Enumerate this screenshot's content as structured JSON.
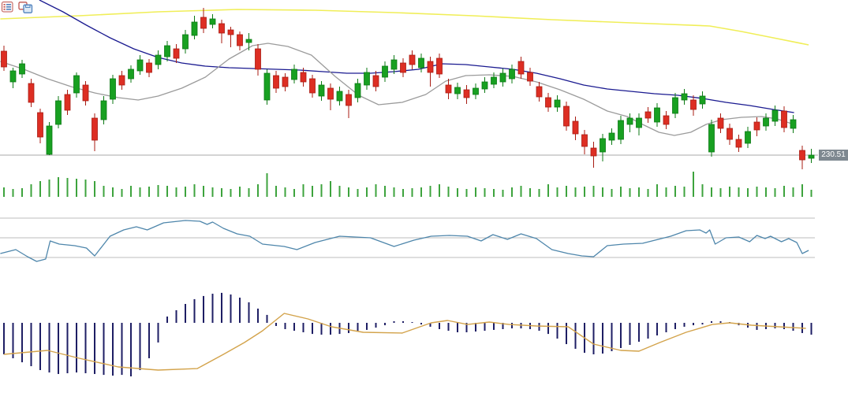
{
  "window": {
    "background": "#ffffff"
  },
  "toolbar": {
    "icons": [
      {
        "name": "table-icon"
      },
      {
        "name": "copy-icon"
      }
    ]
  },
  "price_panel": {
    "last_price_label": "230.51"
  },
  "colors": {
    "up": "#18a021",
    "up_stroke": "#0c7a14",
    "down": "#dd2e23",
    "down_stroke": "#a81c13",
    "ma_fast": "#9b9b9b",
    "ma_slow": "#1a1a90",
    "ma_long": "#f0ee58",
    "volume": "#3da33d",
    "oscillator": "#4e86ab",
    "macd_histogram": "#1e1e64",
    "macd_signal": "#d3a34b",
    "grid": "#bdbdbd",
    "price_line": "#a9a9a9",
    "price_tag_bg": "#7e8890",
    "price_tag_text": "#ffffff"
  },
  "chart_data": [
    {
      "panel": "price",
      "type": "candlestick",
      "last_close": 230.51,
      "hline": 230.51,
      "candles": {
        "open": [
          251.63,
          245.39,
          246.99,
          245.07,
          239.15,
          230.67,
          236.75,
          242.83,
          243.15,
          244.75,
          238.03,
          237.71,
          241.87,
          246.67,
          246.03,
          247.63,
          249.23,
          248.91,
          250.51,
          252.11,
          252.11,
          254.83,
          258.51,
          257.07,
          257.23,
          255.95,
          254.99,
          253.39,
          252.11,
          241.71,
          246.67,
          246.35,
          245.87,
          247.31,
          246.03,
          242.51,
          244.11,
          241.55,
          242.83,
          242.19,
          244.75,
          246.67,
          246.35,
          247.95,
          249.23,
          250.83,
          248.27,
          249.55,
          250.19,
          244.75,
          242.99,
          243.79,
          242.83,
          243.95,
          244.91,
          245.39,
          246.03,
          249.55,
          247.31,
          244.43,
          242.19,
          240.27,
          240.43,
          237.39,
          234.67,
          231.95,
          231.15,
          233.55,
          233.71,
          236.75,
          236.11,
          239.31,
          237.23,
          238.51,
          238.99,
          241.71,
          241.71,
          240.91,
          231.15,
          238.03,
          235.95,
          233.71,
          232.91,
          237.23,
          236.43,
          237.39,
          239.47,
          235.95,
          231.47,
          229.87
        ],
        "high": [
          252.75,
          248.27,
          249.87,
          246.03,
          239.95,
          237.23,
          242.51,
          243.79,
          247.31,
          245.55,
          238.99,
          242.51,
          246.83,
          247.63,
          248.75,
          250.83,
          250.03,
          251.79,
          253.71,
          253.07,
          255.95,
          258.83,
          260.43,
          259.15,
          258.03,
          256.59,
          255.63,
          255.31,
          253.07,
          247.95,
          247.63,
          247.15,
          248.91,
          248.27,
          246.83,
          245.55,
          245.07,
          244.43,
          243.79,
          246.03,
          248.27,
          247.63,
          249.55,
          250.83,
          250.19,
          251.79,
          251.15,
          250.51,
          251.15,
          246.03,
          245.23,
          244.75,
          245.07,
          246.35,
          247.31,
          248.11,
          248.91,
          250.51,
          248.27,
          245.39,
          243.15,
          242.67,
          241.39,
          238.35,
          235.63,
          233.23,
          234.83,
          235.95,
          238.51,
          238.99,
          238.99,
          240.27,
          241.07,
          239.47,
          243.15,
          243.95,
          242.67,
          243.47,
          237.71,
          238.99,
          236.91,
          234.67,
          236.27,
          238.19,
          238.99,
          240.59,
          240.43,
          238.67,
          232.43,
          231.79
        ],
        "low": [
          247.63,
          244.11,
          246.19,
          240.27,
          232.91,
          230.51,
          235.95,
          238.67,
          242.19,
          240.59,
          231.31,
          236.75,
          240.91,
          243.79,
          245.23,
          246.83,
          246.35,
          247.95,
          249.55,
          249.23,
          251.15,
          254.03,
          255.31,
          256.27,
          253.23,
          252.43,
          251.79,
          251.79,
          246.67,
          240.75,
          243.15,
          243.47,
          245.07,
          244.43,
          242.19,
          241.55,
          239.63,
          240.59,
          238.03,
          241.23,
          243.79,
          243.47,
          245.39,
          246.99,
          246.35,
          247.95,
          247.31,
          244.43,
          246.19,
          241.87,
          241.87,
          240.91,
          241.87,
          243.15,
          244.11,
          244.43,
          245.07,
          246.03,
          244.59,
          241.39,
          239.31,
          239.31,
          235.47,
          233.55,
          230.67,
          227.95,
          229.23,
          232.59,
          232.75,
          235.15,
          234.51,
          237.07,
          236.27,
          235.79,
          238.03,
          240.75,
          238.51,
          239.95,
          230.19,
          234.99,
          232.59,
          231.15,
          231.95,
          234.35,
          235.47,
          236.43,
          235.15,
          234.99,
          227.63,
          228.91
        ],
        "close": [
          248.43,
          247.63,
          249.07,
          241.23,
          234.19,
          236.43,
          241.55,
          239.63,
          246.67,
          241.55,
          233.55,
          241.55,
          246.03,
          244.75,
          247.95,
          249.87,
          247.31,
          250.83,
          252.75,
          250.19,
          254.99,
          257.55,
          256.27,
          258.19,
          255.31,
          254.99,
          252.75,
          254.03,
          247.95,
          247.15,
          244.11,
          244.43,
          247.95,
          245.39,
          243.15,
          244.75,
          241.87,
          243.47,
          240.59,
          245.07,
          247.31,
          244.43,
          248.59,
          249.87,
          247.31,
          248.91,
          250.19,
          247.31,
          246.99,
          243.15,
          244.27,
          242.19,
          244.11,
          245.39,
          246.35,
          247.15,
          247.95,
          246.99,
          245.55,
          242.35,
          240.27,
          241.71,
          236.43,
          234.83,
          232.27,
          230.35,
          233.87,
          234.99,
          237.55,
          238.03,
          238.03,
          238.03,
          240.11,
          236.75,
          242.19,
          242.99,
          239.79,
          242.51,
          236.75,
          235.95,
          233.71,
          232.11,
          235.31,
          235.63,
          238.03,
          239.63,
          236.11,
          237.71,
          229.55,
          230.51
        ]
      },
      "overlays": [
        {
          "name": "ma-long",
          "color_key": "ma_long",
          "idx": [
            -0.4,
            8.3,
            17,
            25.7,
            34.3,
            43,
            51.7,
            60.4,
            69.1,
            77.8,
            81.3,
            84.8,
            88.7
          ],
          "price": [
            258.19,
            258.83,
            259.63,
            260.11,
            259.95,
            259.47,
            258.83,
            258.03,
            257.39,
            256.75,
            255.63,
            254.35,
            252.91
          ]
        },
        {
          "name": "ma-slow",
          "color_key": "ma_slow",
          "idx": [
            3.9,
            6.5,
            9.1,
            11.7,
            14.3,
            17,
            19.6,
            22.2,
            24.8,
            27.4,
            30,
            32.6,
            35.2,
            37.8,
            40.4,
            43,
            45.7,
            48.3,
            50.9,
            53.5,
            56.1,
            58.7,
            61.3,
            63.9,
            66.5,
            69.1,
            71.7,
            74.3,
            77,
            79.6,
            82.2,
            84.8,
            87.1
          ],
          "price": [
            262.03,
            259.63,
            256.91,
            254.35,
            252.11,
            250.35,
            249.23,
            248.59,
            248.27,
            248.11,
            247.95,
            247.79,
            247.47,
            247.15,
            247.15,
            247.47,
            247.95,
            249.07,
            248.91,
            248.43,
            247.95,
            247.15,
            246.03,
            244.75,
            243.95,
            243.47,
            242.99,
            242.67,
            242.03,
            241.23,
            240.59,
            239.79,
            239.15
          ]
        },
        {
          "name": "ma-fast",
          "color_key": "ma_fast",
          "idx": [
            -0.4,
            2.2,
            4.8,
            7.4,
            10,
            12.6,
            14.8,
            17,
            19.6,
            22.2,
            24.8,
            27.4,
            29.1,
            31.3,
            33.9,
            36.5,
            39.1,
            41.3,
            43.9,
            46.5,
            48.7,
            50.9,
            53.5,
            56.1,
            58.7,
            61.3,
            63.9,
            66.5,
            68.7,
            70.4,
            72.2,
            73.9,
            75.7,
            77.4,
            79.1,
            81.3,
            83.5,
            85.2,
            87.1
          ],
          "price": [
            249.55,
            247.95,
            246.03,
            244.43,
            243.15,
            242.19,
            241.71,
            242.51,
            244.11,
            246.35,
            250.03,
            252.75,
            253.23,
            252.59,
            250.83,
            246.51,
            242.67,
            240.75,
            241.23,
            242.83,
            245.55,
            246.67,
            246.83,
            246.51,
            245.39,
            243.79,
            241.87,
            239.47,
            238.35,
            236.75,
            235.15,
            234.51,
            235.15,
            236.75,
            237.71,
            238.19,
            238.35,
            237.87,
            236.75
          ]
        }
      ]
    },
    {
      "panel": "volume",
      "type": "bar",
      "values": [
        24,
        20,
        22,
        32,
        40,
        44,
        50,
        48,
        46,
        44,
        40,
        28,
        24,
        20,
        28,
        24,
        26,
        30,
        28,
        24,
        26,
        32,
        28,
        24,
        22,
        20,
        26,
        22,
        32,
        60,
        28,
        24,
        20,
        32,
        28,
        32,
        40,
        28,
        24,
        20,
        24,
        32,
        28,
        24,
        20,
        22,
        24,
        28,
        32,
        26,
        22,
        20,
        24,
        22,
        20,
        18,
        24,
        28,
        22,
        20,
        32,
        24,
        28,
        24,
        26,
        28,
        24,
        20,
        26,
        22,
        24,
        20,
        32,
        24,
        28,
        26,
        64,
        32,
        24,
        22,
        26,
        24,
        22,
        26,
        24,
        22,
        28,
        24,
        32,
        18
      ]
    },
    {
      "panel": "oscillator",
      "type": "line",
      "gridlines": [
        70,
        50,
        30
      ],
      "idx": [
        -0.4,
        1.3,
        2.6,
        3.6,
        4.6,
        5.1,
        6.1,
        7.8,
        9.1,
        10,
        11.7,
        13.2,
        14.6,
        15.8,
        17.6,
        20,
        21.6,
        22.4,
        23,
        24.2,
        25.7,
        27.1,
        28.5,
        30.9,
        32.3,
        34.3,
        37,
        38.7,
        40.4,
        43,
        45.2,
        47.1,
        49.1,
        51.1,
        52.6,
        53.9,
        55.5,
        57,
        58.7,
        60.4,
        62.2,
        63.7,
        65,
        66.5,
        68.3,
        70.4,
        73.5,
        75.2,
        76.7,
        77.4,
        77.8,
        78.4,
        79.6,
        81,
        82.2,
        83,
        83.9,
        84.5,
        85.7,
        86.5,
        87.4,
        88,
        88.7
      ],
      "value": [
        34,
        38,
        30.8,
        26,
        28.4,
        46.8,
        43.6,
        42,
        39.6,
        31.6,
        51.6,
        58,
        61.2,
        58,
        65.2,
        67.6,
        66.8,
        63.6,
        66,
        59.6,
        54,
        51.6,
        43.6,
        41.2,
        38,
        45.2,
        51.6,
        50.8,
        50,
        41.2,
        47.6,
        51.6,
        52.4,
        51.6,
        46.8,
        53.2,
        48.4,
        54,
        49.2,
        38,
        34,
        31.6,
        30.8,
        42,
        43.6,
        44.4,
        51.6,
        57.2,
        58,
        54.8,
        58,
        43.6,
        50,
        50.8,
        46,
        52.4,
        49.2,
        51.6,
        46,
        49.2,
        45.2,
        34,
        37.2
      ]
    },
    {
      "panel": "macd",
      "type": "macd",
      "histogram": [
        -2.5,
        -2.81,
        -3.13,
        -3.44,
        -3.75,
        -3.94,
        -4.06,
        -4,
        -3.94,
        -4,
        -4.06,
        -4.13,
        -4.19,
        -4.13,
        -4.25,
        -3.75,
        -2.81,
        -1.56,
        0.5,
        1,
        1.5,
        1.88,
        2.13,
        2.31,
        2.38,
        2.25,
        2,
        1.63,
        1.13,
        0.63,
        -0.25,
        -0.5,
        -0.63,
        -0.75,
        -0.88,
        -0.94,
        -0.94,
        -0.88,
        -0.81,
        -0.69,
        -0.56,
        -0.38,
        -0.19,
        0.13,
        0.13,
        0.06,
        -0.13,
        -0.31,
        -0.5,
        -0.63,
        -0.75,
        -0.75,
        -0.69,
        -0.63,
        -0.56,
        -0.5,
        -0.44,
        -0.44,
        -0.5,
        -0.63,
        -0.88,
        -1.25,
        -1.69,
        -2.06,
        -2.38,
        -2.5,
        -2.44,
        -2.25,
        -2,
        -1.75,
        -1.5,
        -1.25,
        -1,
        -0.75,
        -0.5,
        -0.31,
        -0.19,
        -0.13,
        0.13,
        0.13,
        0.06,
        -0.19,
        -0.38,
        -0.56,
        -0.5,
        -0.44,
        -0.5,
        -0.63,
        -0.81,
        -0.94
      ],
      "signal": {
        "idx": [
          0,
          4.8,
          8.3,
          12.6,
          17,
          21.3,
          24.2,
          26.5,
          28.5,
          30.9,
          33.5,
          36.1,
          39.6,
          43.9,
          47.1,
          48.9,
          51.1,
          53.5,
          55.7,
          58.7,
          62.2,
          65,
          68,
          70,
          72.3,
          75.2,
          78.1,
          80,
          82.4,
          85.4,
          88.4
        ],
        "value": [
          -2.5,
          -2.19,
          -2.81,
          -3.5,
          -3.75,
          -3.63,
          -2.5,
          -1.56,
          -0.63,
          0.75,
          0.31,
          -0.31,
          -0.75,
          -0.81,
          0,
          0.19,
          -0.13,
          0.06,
          -0.13,
          -0.25,
          -0.31,
          -1.69,
          -2.19,
          -2.25,
          -1.56,
          -0.75,
          -0.13,
          0,
          -0.19,
          -0.31,
          -0.44
        ]
      }
    }
  ]
}
